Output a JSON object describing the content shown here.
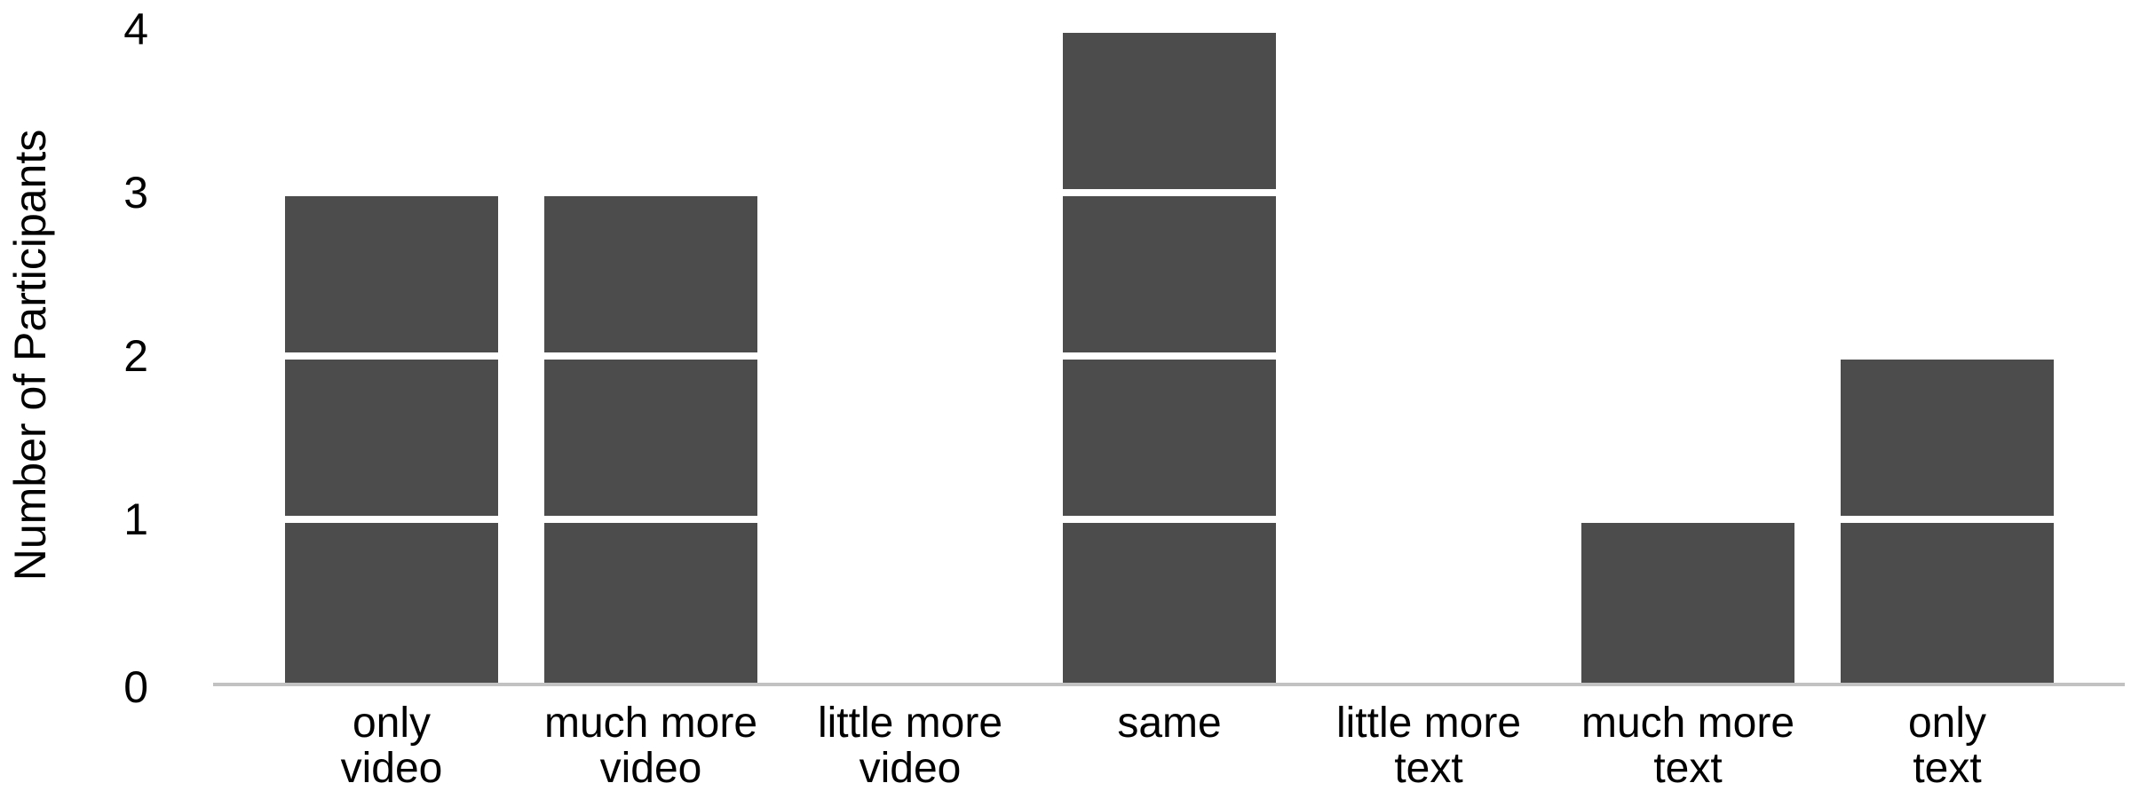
{
  "chart_data": {
    "type": "bar",
    "title": "",
    "ylabel": "Number of Participants",
    "xlabel": "",
    "categories": [
      "only video",
      "much more video",
      "little more video",
      "same",
      "little more text",
      "much more text",
      "only text"
    ],
    "category_label_lines": [
      "only\nvideo",
      "much more\nvideo",
      "little more\nvideo",
      "same",
      "little more\ntext",
      "much more\ntext",
      "only\ntext"
    ],
    "values": [
      3,
      3,
      0,
      4,
      0,
      1,
      2
    ],
    "yticks": [
      "0",
      "1",
      "2",
      "3",
      "4"
    ],
    "ylim": [
      0,
      4
    ],
    "grid": false,
    "legend": false,
    "bar_style": "stacked-unit-blocks-with-white-gaps",
    "bar_color": "#4c4c4c",
    "axis_line_color": "#c2c2c2",
    "text_color": "#000000",
    "background_color": "#ffffff"
  }
}
